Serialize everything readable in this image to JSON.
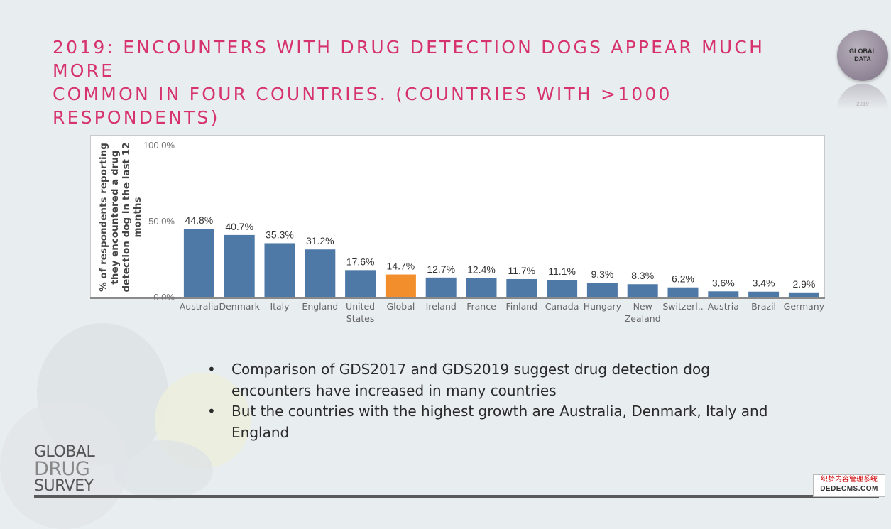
{
  "slide": {
    "title_line1": "2019: ENCOUNTERS WITH DRUG DETECTION DOGS APPEAR MUCH MORE",
    "title_line2": "COMMON IN FOUR COUNTRIES. (COUNTRIES WITH >1000 RESPONDENTS)",
    "badge_text": "GLOBAL\nDATA",
    "badge_reflection_text": "2019",
    "bullets": [
      "Comparison of GDS2017 and GDS2019 suggest drug detection dog encounters have increased in many countries",
      "But the countries with the highest growth are Australia, Denmark, Italy and England"
    ],
    "logo": {
      "line1": "GLOBAL",
      "line2": "DRUG",
      "line3": "SURVEY"
    },
    "watermark": {
      "line1": "织梦内容管理系统",
      "line2": "DEDECMS.COM"
    },
    "colors": {
      "title": "#d6336c",
      "bar": "#4e79a7",
      "highlight_bar": "#f28e2b"
    }
  },
  "chart_data": {
    "type": "bar",
    "title": "",
    "xlabel": "",
    "ylabel": "% of respondents reporting they encountered a drug detection dog in the last 12 months",
    "ylabel_lines": [
      "% of respondents reporting",
      "they encountered a drug",
      "detection dog in the last 12",
      "months"
    ],
    "ylim": [
      0,
      100
    ],
    "yticks": [
      "100.0%",
      "50.0%",
      "0.0%"
    ],
    "ytick_values": [
      100,
      50,
      0
    ],
    "categories": [
      "Australia",
      "Denmark",
      "Italy",
      "England",
      "United States",
      "Global",
      "Ireland",
      "France",
      "Finland",
      "Canada",
      "Hungary",
      "New Zealand",
      "Switzerl..",
      "Austria",
      "Brazil",
      "Germany"
    ],
    "category_labels": [
      [
        "Australia"
      ],
      [
        "Denmark"
      ],
      [
        "Italy"
      ],
      [
        "England"
      ],
      [
        "United",
        "States"
      ],
      [
        "Global"
      ],
      [
        "Ireland"
      ],
      [
        "France"
      ],
      [
        "Finland"
      ],
      [
        "Canada"
      ],
      [
        "Hungary"
      ],
      [
        "New",
        "Zealand"
      ],
      [
        "Switzerl.."
      ],
      [
        "Austria"
      ],
      [
        "Brazil"
      ],
      [
        "Germany"
      ]
    ],
    "values": [
      44.8,
      40.7,
      35.3,
      31.2,
      17.6,
      14.7,
      12.7,
      12.4,
      11.7,
      11.1,
      9.3,
      8.3,
      6.2,
      3.6,
      3.4,
      2.9
    ],
    "value_labels": [
      "44.8%",
      "40.7%",
      "35.3%",
      "31.2%",
      "17.6%",
      "14.7%",
      "12.7%",
      "12.4%",
      "11.7%",
      "11.1%",
      "9.3%",
      "8.3%",
      "6.2%",
      "3.6%",
      "3.4%",
      "2.9%"
    ],
    "highlight": "Global",
    "grid": false,
    "legend": "none"
  }
}
